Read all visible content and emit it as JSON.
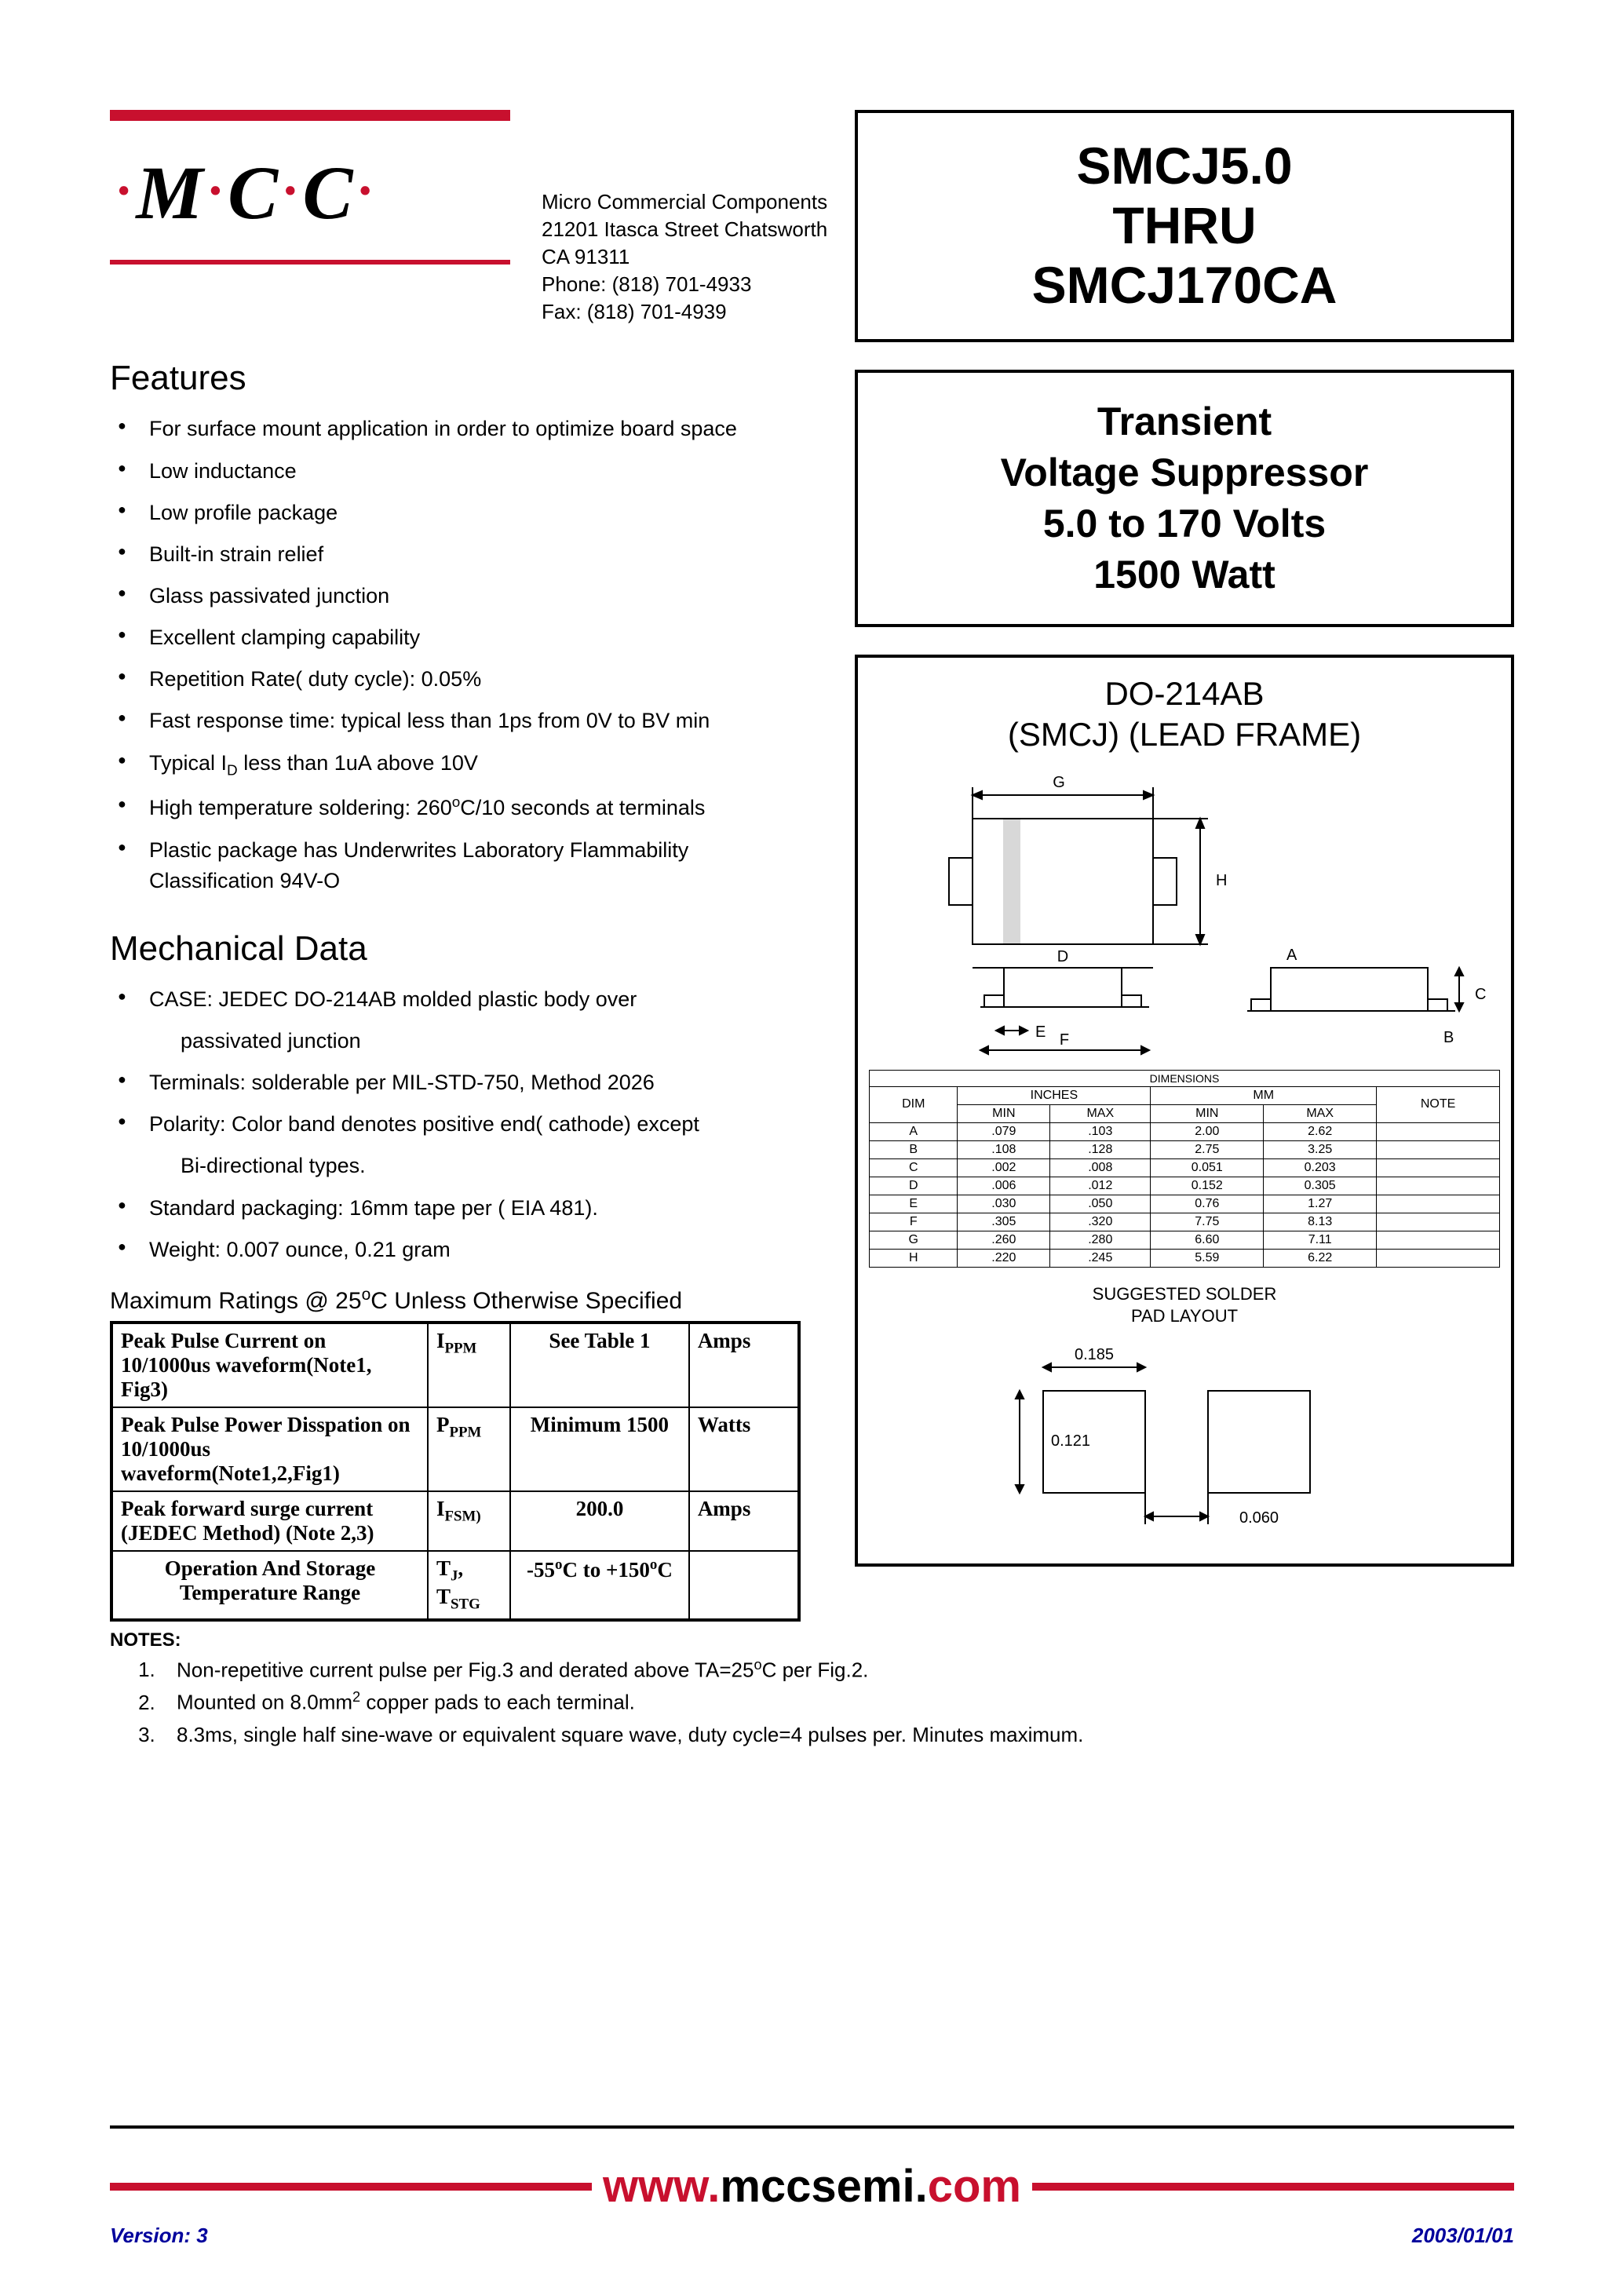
{
  "logo": {
    "text": "M·C·C"
  },
  "company": {
    "name": "Micro Commercial Components",
    "addr1": "21201 Itasca Street Chatsworth",
    "addr2": "CA 91311",
    "phone": "Phone: (818) 701-4933",
    "fax": "Fax:     (818) 701-4939"
  },
  "title_box": {
    "l1": "SMCJ5.0",
    "l2": "THRU",
    "l3": "SMCJ170CA"
  },
  "subtitle_box": {
    "l1": "Transient",
    "l2": "Voltage Suppressor",
    "l3": "5.0 to 170 Volts",
    "l4": "1500 Watt"
  },
  "package": {
    "l1": "DO-214AB",
    "l2": "(SMCJ) (LEAD FRAME)",
    "dim_header": "DIMENSIONS",
    "inches": "INCHES",
    "mm": "MM",
    "dim": "DIM",
    "min": "MIN",
    "max": "MAX",
    "note": "NOTE",
    "rows": [
      {
        "d": "A",
        "imin": ".079",
        "imax": ".103",
        "mmin": "2.00",
        "mmax": "2.62",
        "n": ""
      },
      {
        "d": "B",
        "imin": ".108",
        "imax": ".128",
        "mmin": "2.75",
        "mmax": "3.25",
        "n": ""
      },
      {
        "d": "C",
        "imin": ".002",
        "imax": ".008",
        "mmin": "0.051",
        "mmax": "0.203",
        "n": ""
      },
      {
        "d": "D",
        "imin": ".006",
        "imax": ".012",
        "mmin": "0.152",
        "mmax": "0.305",
        "n": ""
      },
      {
        "d": "E",
        "imin": ".030",
        "imax": ".050",
        "mmin": "0.76",
        "mmax": "1.27",
        "n": ""
      },
      {
        "d": "F",
        "imin": ".305",
        "imax": ".320",
        "mmin": "7.75",
        "mmax": "8.13",
        "n": ""
      },
      {
        "d": "G",
        "imin": ".260",
        "imax": ".280",
        "mmin": "6.60",
        "mmax": "7.11",
        "n": ""
      },
      {
        "d": "H",
        "imin": ".220",
        "imax": ".245",
        "mmin": "5.59",
        "mmax": "6.22",
        "n": ""
      }
    ],
    "solder_title_l1": "SUGGESTED SOLDER",
    "solder_title_l2": "PAD LAYOUT",
    "pad_w": "0.185",
    "pad_h": "0.121",
    "pad_g": "0.060"
  },
  "features_title": "Features",
  "features": [
    "For surface mount application in order to optimize board space",
    "Low inductance",
    "Low profile package",
    "Built-in strain relief",
    "Glass passivated junction",
    "Excellent clamping capability",
    "Repetition Rate( duty cycle): 0.05%",
    "Fast response time: typical less than 1ps from 0V to BV min",
    "Typical I_D less than 1uA above 10V",
    "High temperature soldering: 260°C/10 seconds at terminals",
    "Plastic package has Underwrites Laboratory Flammability Classification 94V-O"
  ],
  "mech_title": "Mechanical Data",
  "mech": {
    "case_l1": "CASE: JEDEC DO-214AB molded plastic body over",
    "case_l2": "passivated junction",
    "terminals": "Terminals:   solderable per MIL-STD-750, Method 2026",
    "polarity_l1": "Polarity: Color band denotes positive end( cathode) except",
    "polarity_l2": "Bi-directional types.",
    "packaging": "Standard packaging: 16mm tape per ( EIA 481).",
    "weight": "Weight: 0.007 ounce, 0.21 gram"
  },
  "ratings_title": "Maximum Ratings @ 25°C Unless Otherwise Specified",
  "ratings": [
    {
      "param": "Peak Pulse Current on 10/1000us waveform(Note1, Fig3)",
      "symbol": "I_PPM",
      "value": "See Table 1",
      "unit": "Amps"
    },
    {
      "param": "Peak Pulse Power Disspation on 10/1000us waveform(Note1,2,Fig1)",
      "symbol": "P_PPM",
      "value": "Minimum 1500",
      "unit": "Watts"
    },
    {
      "param": "Peak forward surge current (JEDEC Method) (Note 2,3)",
      "symbol": "I_FSM)",
      "value": "200.0",
      "unit": "Amps"
    },
    {
      "param": "Operation And Storage Temperature Range",
      "symbol": "T_J, T_STG",
      "value": "-55°C to +150°C",
      "unit": ""
    }
  ],
  "notes_label": "NOTES:",
  "notes": [
    "Non-repetitive current pulse per Fig.3 and derated above TA=25°C per Fig.2.",
    "Mounted on 8.0mm² copper pads to each terminal.",
    "8.3ms, single half sine-wave or equivalent square wave, duty cycle=4 pulses per. Minutes maximum."
  ],
  "footer": {
    "url_www": "www.",
    "url_mccsemi": "mccsemi",
    "url_dot": ".",
    "url_com": "com",
    "version": "Version: 3",
    "date": "2003/01/01"
  },
  "colors": {
    "red": "#c8102e",
    "blue": "#00009c",
    "black": "#000000",
    "white": "#ffffff"
  }
}
